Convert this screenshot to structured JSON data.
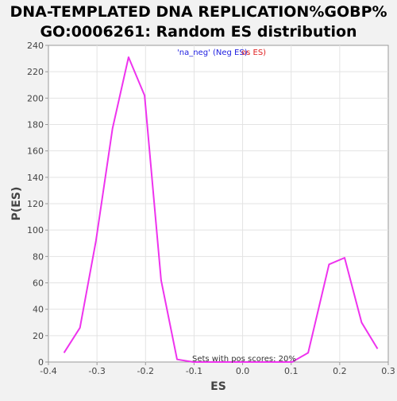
{
  "chart_data": {
    "type": "line",
    "title_lines": [
      "DNA-TEMPLATED DNA REPLICATION%GOBP%",
      "GO:0006261: Random ES distribution"
    ],
    "xlabel": "ES",
    "ylabel": "P(ES)",
    "xlim": [
      -0.4,
      0.3
    ],
    "ylim": [
      0,
      240
    ],
    "x_ticks": [
      -0.4,
      -0.3,
      -0.2,
      -0.1,
      0.0,
      0.1,
      0.2,
      0.3
    ],
    "x_tick_labels": [
      "-0.4",
      "-0.3",
      "-0.2",
      "-0.1",
      "0.0",
      "0.1",
      "0.2",
      "0.3"
    ],
    "y_ticks": [
      0,
      20,
      40,
      60,
      80,
      100,
      120,
      140,
      160,
      180,
      200,
      220,
      240
    ],
    "y_tick_labels": [
      "0",
      "20",
      "40",
      "60",
      "80",
      "100",
      "120",
      "140",
      "160",
      "180",
      "200",
      "220",
      "240"
    ],
    "grid": true,
    "legend": {
      "placement": "top-center",
      "neg_label": "'na_neg' (Neg ES)",
      "pos_label": "'na_pos' (Pos ES)",
      "pos_visible_fragment": "os ES)",
      "neg_color": "#2020e0",
      "pos_color": "#e02020"
    },
    "annotation": "Sets with pos scores: 20%",
    "series": [
      {
        "color": "#ee33ee",
        "x": [
          -0.368,
          -0.335,
          -0.302,
          -0.268,
          -0.235,
          -0.202,
          -0.168,
          -0.135,
          -0.102,
          -0.068,
          -0.035,
          0.0,
          0.035,
          0.068,
          0.102,
          0.135,
          0.178,
          0.21,
          0.245,
          0.278
        ],
        "y": [
          7,
          26,
          92,
          177,
          231,
          202,
          62,
          2,
          0,
          0,
          0,
          0,
          0,
          0,
          0,
          7,
          74,
          79,
          30,
          10
        ]
      }
    ]
  }
}
